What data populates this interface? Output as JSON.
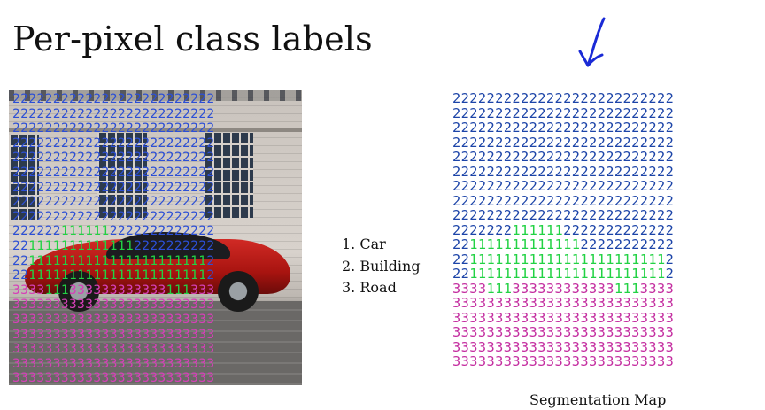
{
  "slide": {
    "title": "Per-pixel class labels"
  },
  "legend": {
    "items": [
      {
        "label": "1. Car"
      },
      {
        "label": "2. Building"
      },
      {
        "label": "3. Road"
      }
    ]
  },
  "segmentation_map": {
    "caption": "Segmentation Map",
    "rows": [
      "22222222222222222222222222",
      "22222222222222222222222222",
      "22222222222222222222222222",
      "22222222222222222222222222",
      "22222222222222222222222222",
      "22222222222222222222222222",
      "22222222222222222222222222",
      "22222222222222222222222222",
      "22222222222222222222222222",
      "22222221111112222222222222",
      "22111111111111122222222222",
      "22111111111111111111111112",
      "22111111111111111111111112",
      "33331113333333333331113333",
      "33333333333333333333333333",
      "33333333333333333333333333",
      "33333333333333333333333333",
      "33333333333333333333333333",
      "33333333333333333333333333"
    ]
  },
  "photo_overlay": {
    "rows": [
      "2222222222222222222222222",
      "2222222222222222222222222",
      "2222222222222222222222222",
      "2222222222222222222222222",
      "2222222222222222222222222",
      "2222222222222222222222222",
      "2222222222222222222222222",
      "2222222222222222222222222",
      "2222222222222222222222222",
      "2222221111112222222222222",
      "2211111111111112222222222",
      "2211111111111111111111112",
      "2211111111111111111111112",
      "3333111333333333333111333",
      "3333333333333333333333333",
      "3333333333333333333333333",
      "3333333333333333333333333",
      "3333333333333333333333333",
      "3333333333333333333333333",
      "3333333333333333333333333"
    ]
  },
  "colors": {
    "car": "#22d244",
    "building": "#1c44a8",
    "road": "#c42ea0",
    "annotation_arrow": "#1a2ad6"
  }
}
